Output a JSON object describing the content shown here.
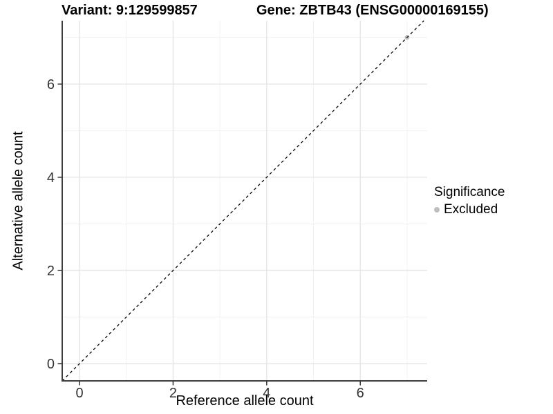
{
  "header": {
    "variant_title": "Variant: 9:129599857",
    "gene_title": "Gene: ZBTB43 (ENSG00000169155)"
  },
  "chart_data": {
    "type": "scatter",
    "title": "",
    "xlabel": "Reference allele count",
    "ylabel": "Alternative allele count",
    "xlim": [
      -0.37,
      7.43
    ],
    "ylim": [
      -0.37,
      7.36
    ],
    "xticks": [
      0,
      2,
      4,
      6
    ],
    "yticks": [
      0,
      2,
      4,
      6
    ],
    "minor_xticks": [
      1,
      3,
      5,
      7
    ],
    "minor_yticks": [
      1,
      3,
      5,
      7
    ],
    "grid": true,
    "reference_line": {
      "type": "identity",
      "slope": 1,
      "intercept": 0,
      "style": "dashed",
      "color": "#000000"
    },
    "series": [
      {
        "name": "Excluded",
        "points": [
          {
            "x": 7,
            "y": 7
          }
        ],
        "color": "#bebebe"
      }
    ],
    "legend": {
      "title": "Significance",
      "position": "right",
      "items": [
        {
          "label": "Excluded",
          "color": "#bebebe"
        }
      ]
    }
  },
  "colors": {
    "background": "#ffffff",
    "grid_major": "#e4e4e4",
    "grid_minor": "#f1f1f1",
    "axis_line": "#3d3d3d",
    "tick_mark": "#3d3d3d",
    "tick_label": "#333333",
    "reference_line": "#000000",
    "point_excluded": "#bebebe"
  }
}
